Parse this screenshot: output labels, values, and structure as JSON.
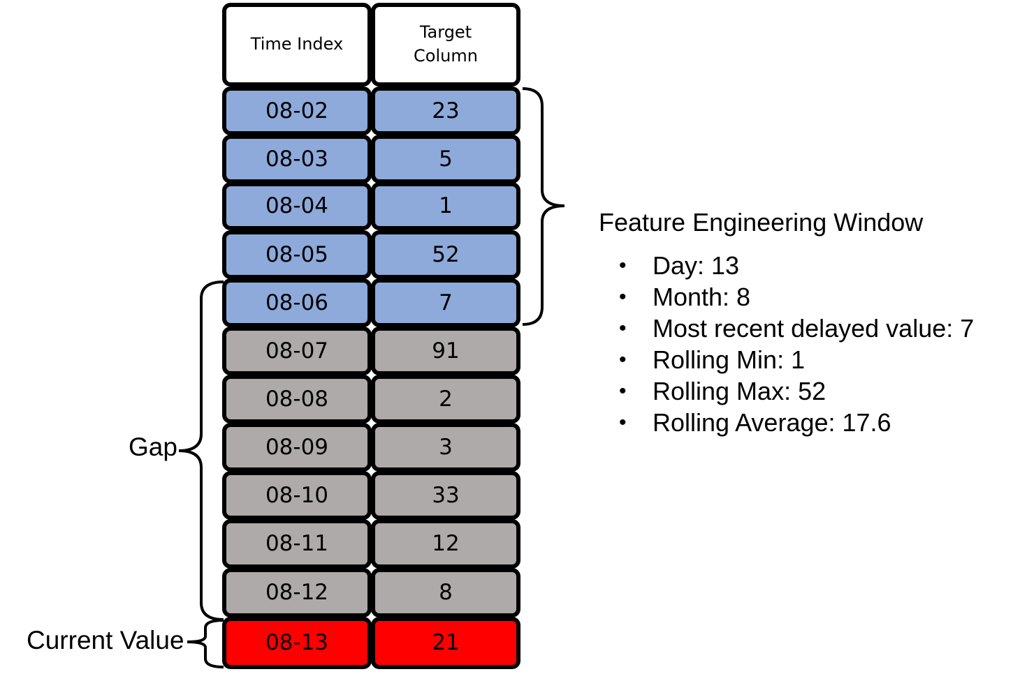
{
  "table": {
    "headers": [
      "Time Index",
      "Target\nColumn"
    ],
    "rows": [
      {
        "time": "08-02",
        "value": "23",
        "group": "window"
      },
      {
        "time": "08-03",
        "value": "5",
        "group": "window"
      },
      {
        "time": "08-04",
        "value": "1",
        "group": "window"
      },
      {
        "time": "08-05",
        "value": "52",
        "group": "window"
      },
      {
        "time": "08-06",
        "value": "7",
        "group": "window"
      },
      {
        "time": "08-07",
        "value": "91",
        "group": "gap"
      },
      {
        "time": "08-08",
        "value": "2",
        "group": "gap"
      },
      {
        "time": "08-09",
        "value": "3",
        "group": "gap"
      },
      {
        "time": "08-10",
        "value": "33",
        "group": "gap"
      },
      {
        "time": "08-11",
        "value": "12",
        "group": "gap"
      },
      {
        "time": "08-12",
        "value": "8",
        "group": "gap"
      },
      {
        "time": "08-13",
        "value": "21",
        "group": "current"
      }
    ]
  },
  "labels": {
    "gap": "Gap",
    "current": "Current Value"
  },
  "features": {
    "title": "Feature Engineering Window",
    "bullet": "•",
    "items": [
      "Day: 13",
      "Month: 8",
      "Most recent delayed value: 7",
      "Rolling Min: 1",
      "Rolling Max: 52",
      "Rolling Average: 17.6"
    ]
  },
  "colors": {
    "window": "#8eaadb",
    "gap": "#aeaaaa",
    "current": "#ff0000",
    "header": "#ffffff",
    "border": "#000000"
  }
}
